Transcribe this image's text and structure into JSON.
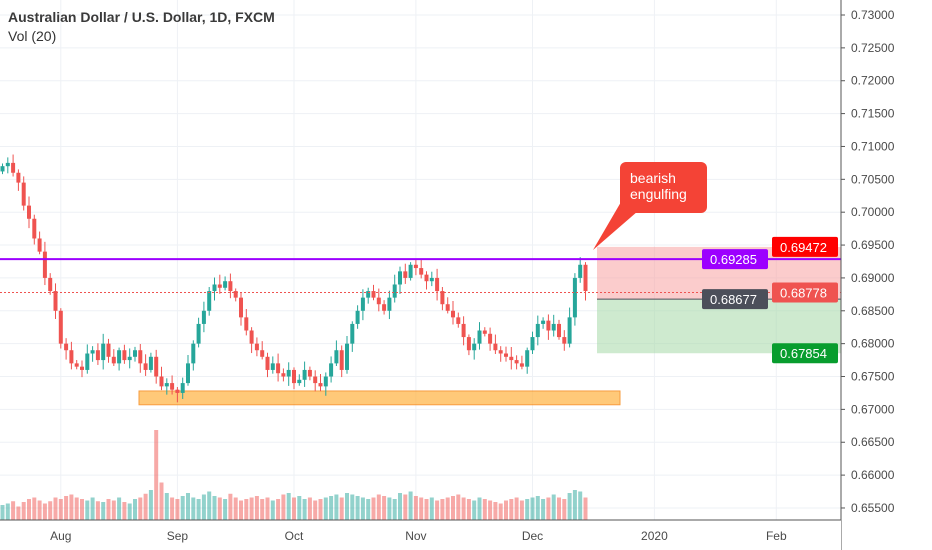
{
  "legend": {
    "title": "Australian Dollar / U.S. Dollar, 1D, FXCM",
    "volume": "Vol (20)"
  },
  "annotation": {
    "text_line1": "bearish",
    "text_line2": "engulfing"
  },
  "colors": {
    "up": "#26a69a",
    "down": "#ef5350",
    "purple": "#9c27b0",
    "orange": "#ffb74d"
  },
  "chart_data": {
    "type": "candlestick",
    "title": "Australian Dollar / U.S. Dollar, 1D, FXCM",
    "ylim": [
      0.6525,
      0.7325
    ],
    "y_ticks": [
      "0.73000",
      "0.72500",
      "0.72000",
      "0.71500",
      "0.71000",
      "0.70500",
      "0.70000",
      "0.69500",
      "0.69000",
      "0.68500",
      "0.68000",
      "0.67500",
      "0.67000",
      "0.66500",
      "0.66000",
      "0.65500"
    ],
    "x_ticks": [
      {
        "label": "Aug",
        "bar": 11
      },
      {
        "label": "Sep",
        "bar": 33
      },
      {
        "label": "Oct",
        "bar": 55
      },
      {
        "label": "Nov",
        "bar": 78
      },
      {
        "label": "Dec",
        "bar": 100
      },
      {
        "label": "2020",
        "bar": 123
      },
      {
        "label": "Feb",
        "bar": 146
      }
    ],
    "closes": [
      0.707,
      0.7075,
      0.706,
      0.7045,
      0.701,
      0.699,
      0.696,
      0.694,
      0.69,
      0.688,
      0.685,
      0.68,
      0.679,
      0.677,
      0.6765,
      0.676,
      0.6785,
      0.679,
      0.6775,
      0.68,
      0.678,
      0.677,
      0.679,
      0.6775,
      0.678,
      0.679,
      0.677,
      0.676,
      0.678,
      0.675,
      0.6735,
      0.674,
      0.673,
      0.6725,
      0.674,
      0.677,
      0.68,
      0.683,
      0.685,
      0.688,
      0.689,
      0.6885,
      0.6895,
      0.688,
      0.687,
      0.684,
      0.682,
      0.68,
      0.679,
      0.678,
      0.676,
      0.677,
      0.6755,
      0.675,
      0.676,
      0.674,
      0.6745,
      0.676,
      0.675,
      0.674,
      0.6735,
      0.675,
      0.677,
      0.679,
      0.676,
      0.68,
      0.683,
      0.685,
      0.687,
      0.688,
      0.687,
      0.686,
      0.685,
      0.687,
      0.689,
      0.691,
      0.69,
      0.692,
      0.6915,
      0.6905,
      0.6895,
      0.69,
      0.688,
      0.686,
      0.685,
      0.684,
      0.683,
      0.681,
      0.679,
      0.68,
      0.682,
      0.6815,
      0.68,
      0.679,
      0.6785,
      0.678,
      0.6775,
      0.677,
      0.6765,
      0.679,
      0.681,
      0.683,
      0.6835,
      0.682,
      0.683,
      0.681,
      0.68,
      0.684,
      0.69,
      0.692,
      0.688
    ],
    "volumes": [
      20,
      22,
      25,
      18,
      24,
      28,
      30,
      26,
      22,
      25,
      30,
      28,
      32,
      34,
      30,
      28,
      26,
      30,
      25,
      24,
      28,
      26,
      30,
      24,
      22,
      28,
      30,
      35,
      40,
      120,
      50,
      36,
      30,
      28,
      32,
      36,
      30,
      28,
      34,
      38,
      32,
      30,
      28,
      35,
      30,
      26,
      28,
      30,
      32,
      28,
      30,
      26,
      28,
      34,
      36,
      30,
      32,
      28,
      30,
      26,
      28,
      30,
      32,
      34,
      30,
      36,
      34,
      32,
      30,
      28,
      30,
      34,
      32,
      30,
      28,
      36,
      34,
      38,
      32,
      30,
      28,
      30,
      26,
      28,
      30,
      32,
      34,
      30,
      28,
      26,
      30,
      28,
      26,
      24,
      22,
      26,
      28,
      30,
      26,
      28,
      30,
      32,
      28,
      30,
      34,
      30,
      28,
      36,
      40,
      38,
      30
    ],
    "lines": [
      {
        "name": "resistance",
        "price": 0.69285,
        "label": "0.69285",
        "color": "#9c00ff"
      },
      {
        "name": "last-price",
        "price": 0.68778,
        "label": "0.68778",
        "color": "#ef5350"
      },
      {
        "name": "entry",
        "price": 0.68677,
        "label": "0.68677",
        "color": "#4c4f5a"
      }
    ],
    "stop_label": {
      "price": 0.69472,
      "label": "0.69472",
      "color": "#ff0000"
    },
    "target_label": {
      "price": 0.67854,
      "label": "0.67854",
      "color": "#089d2e"
    },
    "support_zone": {
      "top": 0.6728,
      "bottom": 0.6707
    }
  }
}
